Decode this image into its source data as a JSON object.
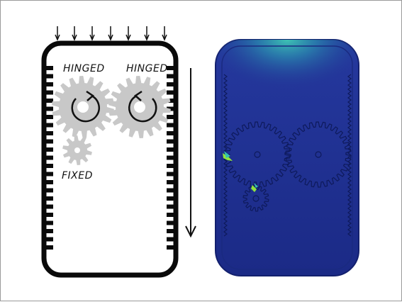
{
  "schematic": {
    "labels": {
      "hinged_left": "HINGED",
      "hinged_right": "HINGED",
      "fixed": "FIXED"
    },
    "colors": {
      "outline": "#0a0a0a",
      "gear": "#c8c8c8",
      "arrow": "#111111"
    }
  },
  "simulation": {
    "colors": {
      "body": "#1f2f92",
      "body_edge": "#13206e",
      "gear_lines": "#0e1a5c",
      "hotspot": "#35c2b0",
      "stress_peak": "#8fe33d"
    }
  }
}
